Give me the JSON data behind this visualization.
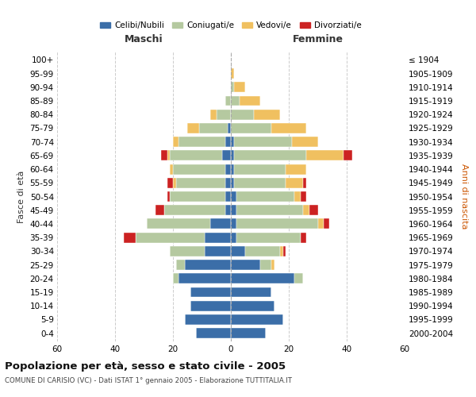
{
  "age_groups": [
    "0-4",
    "5-9",
    "10-14",
    "15-19",
    "20-24",
    "25-29",
    "30-34",
    "35-39",
    "40-44",
    "45-49",
    "50-54",
    "55-59",
    "60-64",
    "65-69",
    "70-74",
    "75-79",
    "80-84",
    "85-89",
    "90-94",
    "95-99",
    "100+"
  ],
  "birth_years": [
    "2000-2004",
    "1995-1999",
    "1990-1994",
    "1985-1989",
    "1980-1984",
    "1975-1979",
    "1970-1974",
    "1965-1969",
    "1960-1964",
    "1955-1959",
    "1950-1954",
    "1945-1949",
    "1940-1944",
    "1935-1939",
    "1930-1934",
    "1925-1929",
    "1920-1924",
    "1915-1919",
    "1910-1914",
    "1905-1909",
    "≤ 1904"
  ],
  "colors": {
    "celibe": "#3b6ea8",
    "coniugato": "#b5c9a0",
    "vedovo": "#f0c060",
    "divorziato": "#cc2222"
  },
  "males": {
    "celibe": [
      12,
      16,
      14,
      14,
      18,
      16,
      9,
      9,
      7,
      2,
      2,
      2,
      2,
      3,
      2,
      1,
      0,
      0,
      0,
      0,
      0
    ],
    "coniugato": [
      0,
      0,
      0,
      0,
      2,
      3,
      12,
      24,
      22,
      21,
      19,
      17,
      18,
      18,
      16,
      10,
      5,
      2,
      0,
      0,
      0
    ],
    "vedovo": [
      0,
      0,
      0,
      0,
      0,
      0,
      0,
      0,
      0,
      0,
      0,
      1,
      1,
      1,
      2,
      4,
      2,
      0,
      0,
      0,
      0
    ],
    "divorziato": [
      0,
      0,
      0,
      0,
      0,
      0,
      0,
      4,
      0,
      3,
      1,
      2,
      0,
      2,
      0,
      0,
      0,
      0,
      0,
      0,
      0
    ]
  },
  "females": {
    "nubile": [
      12,
      18,
      15,
      14,
      22,
      10,
      5,
      2,
      2,
      2,
      2,
      1,
      1,
      1,
      1,
      0,
      0,
      0,
      0,
      0,
      0
    ],
    "coniugata": [
      0,
      0,
      0,
      0,
      3,
      4,
      12,
      22,
      28,
      23,
      20,
      18,
      18,
      25,
      20,
      14,
      8,
      3,
      1,
      0,
      0
    ],
    "vedova": [
      0,
      0,
      0,
      0,
      0,
      1,
      1,
      0,
      2,
      2,
      2,
      6,
      7,
      13,
      9,
      12,
      9,
      7,
      4,
      1,
      0
    ],
    "divorziata": [
      0,
      0,
      0,
      0,
      0,
      0,
      1,
      2,
      2,
      3,
      2,
      1,
      0,
      3,
      0,
      0,
      0,
      0,
      0,
      0,
      0
    ]
  },
  "xlim": 60,
  "title": "Popolazione per età, sesso e stato civile - 2005",
  "subtitle": "COMUNE DI CARISIO (VC) - Dati ISTAT 1° gennaio 2005 - Elaborazione TUTTITALIA.IT",
  "xlabel_left": "Maschi",
  "xlabel_right": "Femmine",
  "ylabel_left": "Fasce di età",
  "ylabel_right": "Anni di nascita",
  "legend_labels": [
    "Celibi/Nubili",
    "Coniugati/e",
    "Vedovi/e",
    "Divorziati/e"
  ],
  "right_ylabel_color": "#cc5500"
}
